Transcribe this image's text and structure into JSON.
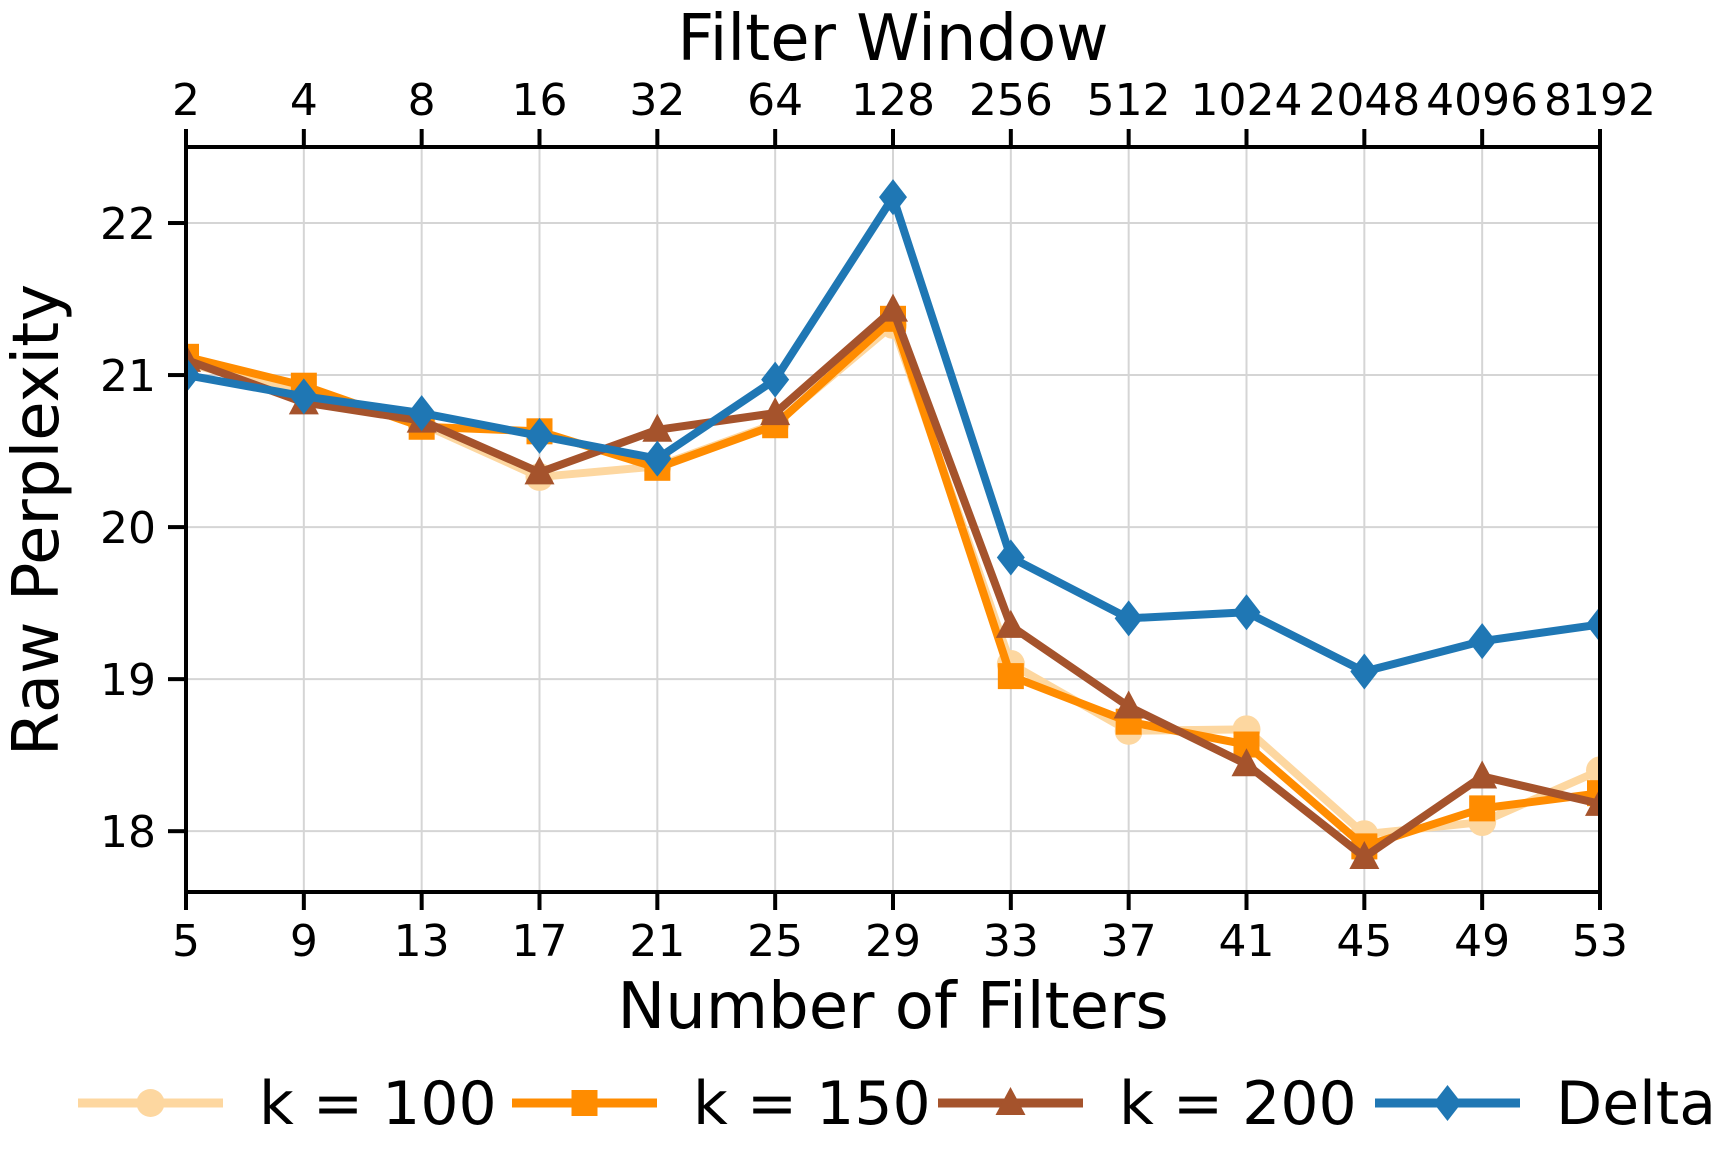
{
  "chart_data": {
    "type": "line",
    "x_label_top": "Filter Window",
    "x_label_bottom": "Number of Filters",
    "ylabel": "Raw Perplexity",
    "x": [
      5,
      9,
      13,
      17,
      21,
      25,
      29,
      33,
      37,
      41,
      45,
      49,
      53
    ],
    "x_tick_labels": [
      "5",
      "9",
      "13",
      "17",
      "21",
      "25",
      "29",
      "33",
      "37",
      "41",
      "45",
      "49",
      "53"
    ],
    "x_top_labels": [
      "2",
      "4",
      "8",
      "16",
      "32",
      "64",
      "128",
      "256",
      "512",
      "1024",
      "2048",
      "4096",
      "8192"
    ],
    "yticks": [
      18,
      19,
      20,
      21,
      22
    ],
    "ytick_labels": [
      "18",
      "19",
      "20",
      "21",
      "22"
    ],
    "xlim": [
      5,
      53
    ],
    "ylim": [
      17.6,
      22.5
    ],
    "grid": true,
    "grid_color": "#d5d5d5",
    "legend_position": "bottom",
    "series": [
      {
        "name": "k = 100",
        "color": "#FDD7A0",
        "marker": "circle",
        "values": [
          21.08,
          20.88,
          20.68,
          20.33,
          20.4,
          20.68,
          21.33,
          19.1,
          18.66,
          18.67,
          17.98,
          18.06,
          18.4
        ]
      },
      {
        "name": "k = 150",
        "color": "#FF8C00",
        "marker": "square",
        "values": [
          21.12,
          20.93,
          20.66,
          20.63,
          20.39,
          20.67,
          21.37,
          19.02,
          18.72,
          18.57,
          17.9,
          18.15,
          18.25
        ]
      },
      {
        "name": "k = 200",
        "color": "#A5532C",
        "marker": "triangle",
        "values": [
          21.1,
          20.82,
          20.7,
          20.36,
          20.64,
          20.75,
          21.43,
          19.35,
          18.82,
          18.44,
          17.83,
          18.36,
          18.18
        ]
      },
      {
        "name": "Delta",
        "color": "#1F77B4",
        "marker": "diamond",
        "values": [
          21.0,
          20.86,
          20.75,
          20.6,
          20.45,
          20.97,
          22.17,
          19.8,
          19.4,
          19.44,
          19.05,
          19.25,
          19.36
        ]
      }
    ]
  }
}
